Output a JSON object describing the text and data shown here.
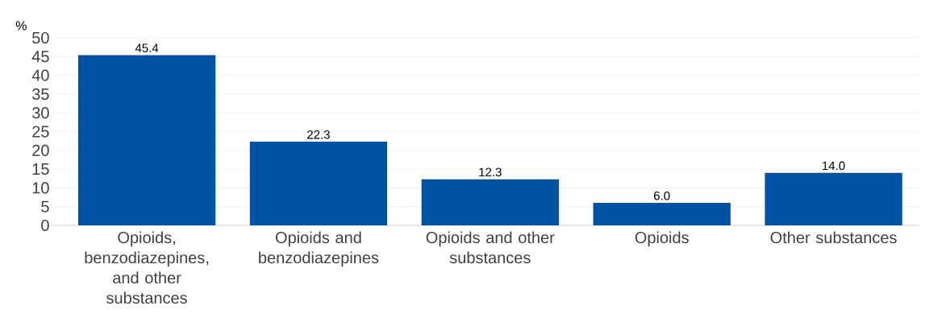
{
  "chart_data": {
    "type": "bar",
    "ylabel": "%",
    "categories": [
      "Opioids, benzodiazepines, and other substances",
      "Opioids and benzodiazepines",
      "Opioids and other substances",
      "Opioids",
      "Other substances"
    ],
    "values": [
      45.4,
      22.3,
      12.3,
      6.0,
      14.0
    ],
    "value_labels": [
      "45.4",
      "22.3",
      "12.3",
      "6.0",
      "14.0"
    ],
    "color": "#0052a5",
    "ylim": [
      0,
      50
    ],
    "yticks": [
      0,
      5,
      10,
      15,
      20,
      25,
      30,
      35,
      40,
      45,
      50
    ],
    "grid": "y"
  }
}
